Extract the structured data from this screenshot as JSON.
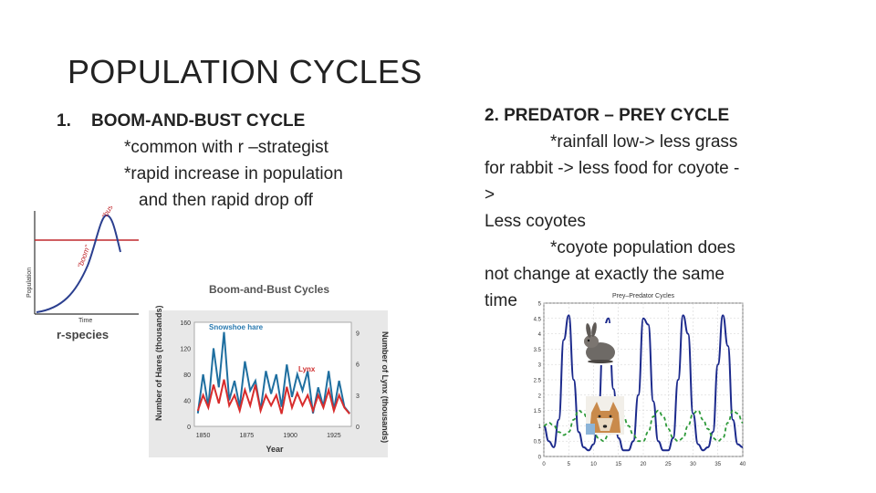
{
  "slide": {
    "title": "POPULATION CYCLES"
  },
  "left_text": {
    "number": "1.",
    "heading": "BOOM-AND-BUST CYCLE",
    "line1": "*common with  r –strategist",
    "line2": "*rapid increase in population",
    "line3": "and then rapid drop off"
  },
  "right_text": {
    "heading": "2. PREDATOR – PREY CYCLE",
    "line1": "*rainfall low-> less grass",
    "line2": "for rabbit -> less food for coyote -",
    "line3": ">",
    "line4": "Less coyotes",
    "line5": "*coyote population does",
    "line6": "not change at exactly the same",
    "line7": "time"
  },
  "r_species_figure": {
    "caption": "r-species",
    "ylabel": "Population",
    "xlabel": "Time",
    "label_boom": "\"boom\"",
    "label_bust": "\"bust\""
  },
  "boom_bust_chart": {
    "title": "Boom-and-Bust Cycles",
    "xlabel": "Year",
    "ylabel_left": "Number of Hares (thousands)",
    "ylabel_right": "Number of Lynx (thousands)",
    "series_hare_label": "Snowshoe hare",
    "series_lynx_label": "Lynx",
    "left_ticks": [
      "0",
      "40",
      "80",
      "120",
      "160"
    ],
    "right_ticks": [
      "0",
      "3",
      "6",
      "9"
    ],
    "x_ticks": [
      "1850",
      "1875",
      "1900",
      "1925"
    ]
  },
  "predator_prey_chart": {
    "title": "Prey–Predator Cycles",
    "y_ticks": [
      "0",
      "0.5",
      "1",
      "1.5",
      "2",
      "2.5",
      "3",
      "3.5",
      "4",
      "4.5",
      "5"
    ],
    "x_ticks": [
      "0",
      "5",
      "10",
      "15",
      "20",
      "25",
      "30",
      "35",
      "40"
    ],
    "rabbit_icon": "rabbit-photo",
    "coyote_icon": "coyote-photo"
  },
  "chart_data": [
    {
      "type": "line",
      "title": "Boom-and-Bust Cycles",
      "xlabel": "Year",
      "ylabel": "Number of Hares (thousands)",
      "xlim": [
        1845,
        1935
      ],
      "ylim": [
        0,
        160
      ],
      "x": [
        1847,
        1850,
        1853,
        1856,
        1859,
        1862,
        1865,
        1868,
        1871,
        1874,
        1877,
        1880,
        1883,
        1886,
        1889,
        1892,
        1895,
        1898,
        1901,
        1904,
        1907,
        1910,
        1913,
        1916,
        1919,
        1922,
        1925,
        1928,
        1931,
        1934
      ],
      "series": [
        {
          "name": "Snowshoe hare",
          "values": [
            20,
            80,
            30,
            120,
            60,
            145,
            40,
            70,
            30,
            100,
            55,
            70,
            25,
            85,
            50,
            80,
            30,
            95,
            45,
            80,
            55,
            85,
            20,
            60,
            30,
            85,
            25,
            70,
            30,
            20
          ]
        },
        {
          "name": "Lynx",
          "values": [
            1.5,
            3,
            1.8,
            4,
            2.2,
            4.5,
            2,
            3,
            1.5,
            3.5,
            2,
            4,
            1.5,
            3,
            2,
            3,
            1.2,
            3.8,
            1.8,
            3.2,
            2,
            3,
            1.5,
            3,
            1.8,
            3.5,
            1.5,
            3,
            1.8,
            1.2
          ]
        }
      ]
    },
    {
      "type": "line",
      "title": "Prey–Predator Cycles",
      "xlim": [
        0,
        40
      ],
      "ylim": [
        0,
        5
      ],
      "x": [
        0,
        1,
        2,
        3,
        4,
        5,
        6,
        7,
        8,
        9,
        10,
        11,
        12,
        13,
        14,
        15,
        16,
        17,
        18,
        19,
        20,
        21,
        22,
        23,
        24,
        25,
        26,
        27,
        28,
        29,
        30,
        31,
        32,
        33,
        34,
        35,
        36,
        37,
        38,
        39,
        40
      ],
      "series": [
        {
          "values": [
            1,
            0.5,
            0.3,
            1.2,
            3.8,
            4.6,
            2.5,
            0.8,
            0.3,
            0.2,
            0.4,
            1.5,
            4.2,
            4.5,
            2.2,
            0.6,
            0.2,
            0.2,
            0.5,
            2.0,
            4.5,
            4.3,
            1.8,
            0.5,
            0.2,
            0.2,
            0.6,
            2.5,
            4.6,
            4.0,
            1.4,
            0.4,
            0.2,
            0.3,
            0.8,
            3.0,
            4.6,
            3.6,
            1.2,
            0.4,
            0.3
          ]
        },
        {
          "values": [
            1,
            1.1,
            1.0,
            0.8,
            0.7,
            0.8,
            1.2,
            1.5,
            1.4,
            1.1,
            0.8,
            0.6,
            0.5,
            0.7,
            1.2,
            1.5,
            1.3,
            1.0,
            0.7,
            0.5,
            0.5,
            0.8,
            1.3,
            1.5,
            1.3,
            0.9,
            0.6,
            0.5,
            0.6,
            1.0,
            1.4,
            1.5,
            1.2,
            0.9,
            0.6,
            0.5,
            0.6,
            1.1,
            1.5,
            1.4,
            1.1
          ]
        }
      ]
    }
  ]
}
